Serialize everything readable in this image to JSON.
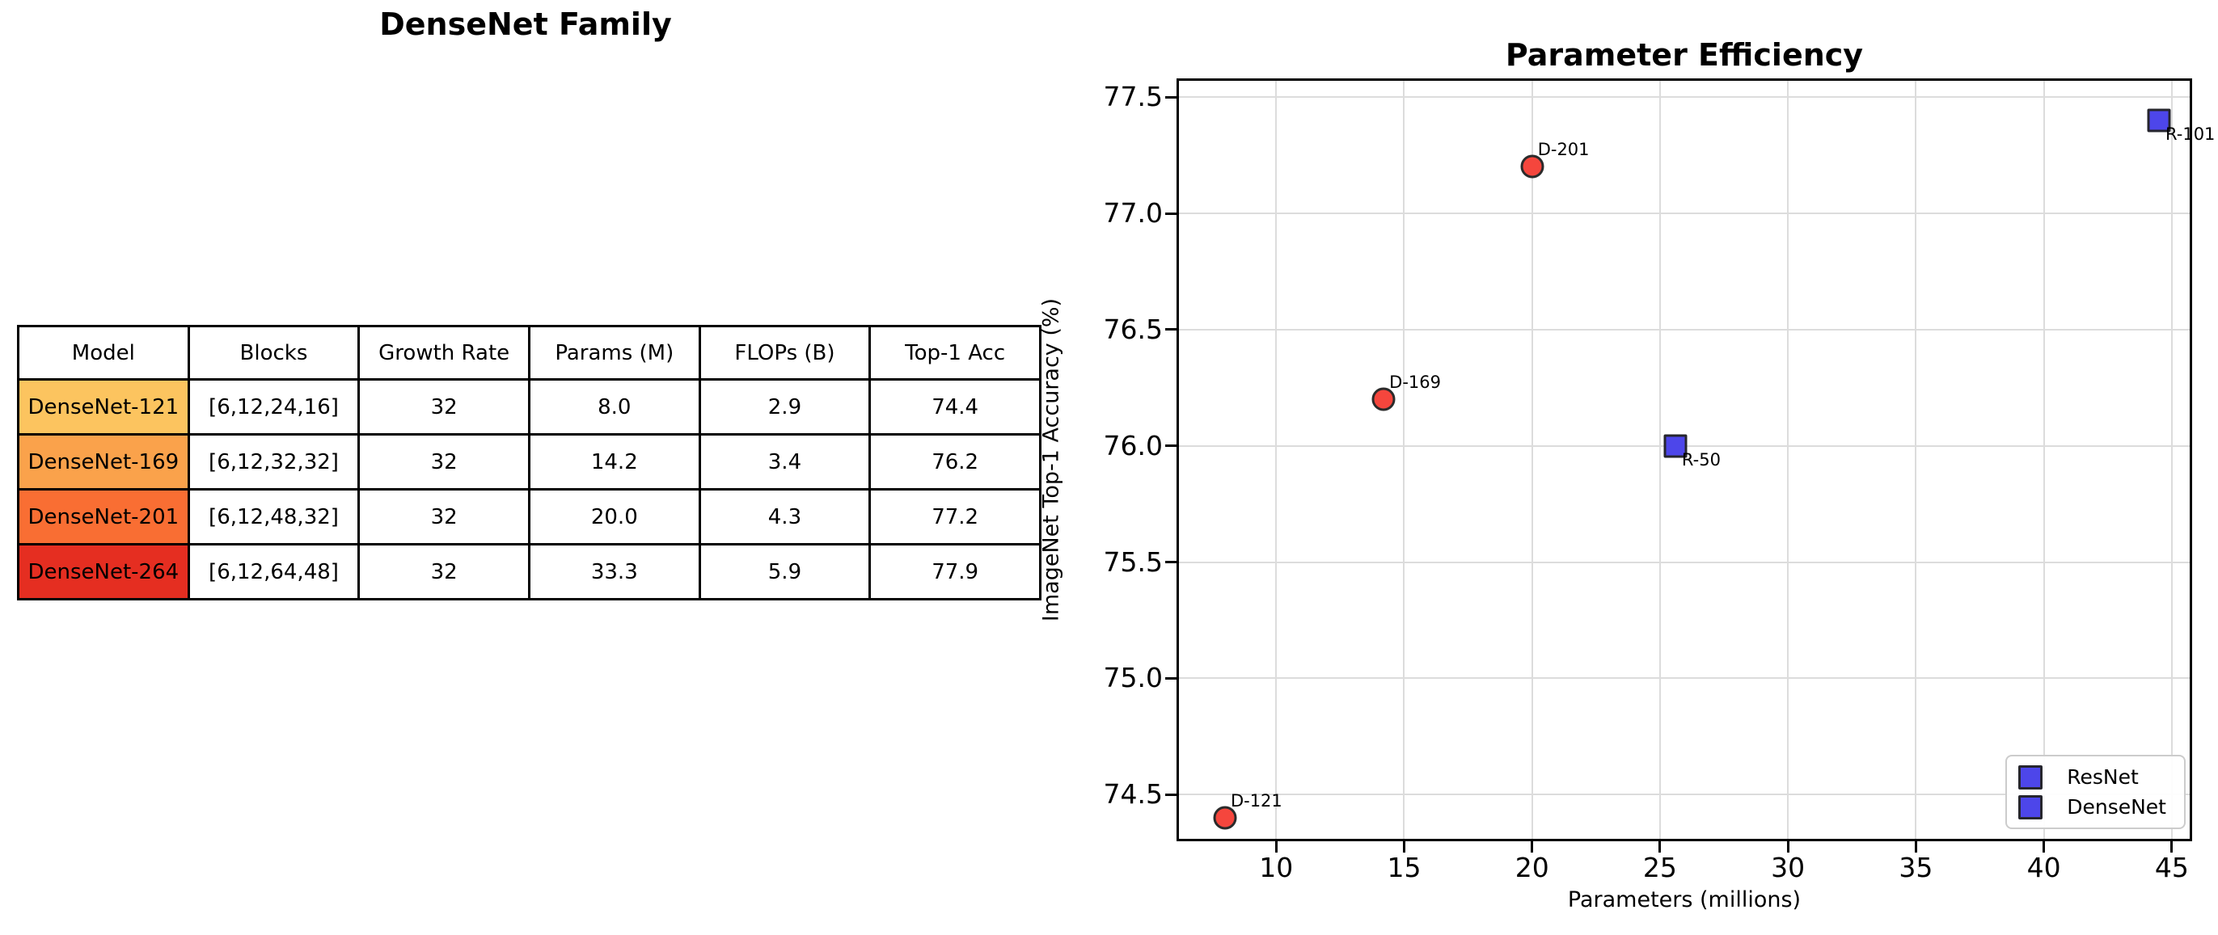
{
  "page": {
    "background": "#ffffff"
  },
  "left_panel": {
    "title": "DenseNet Family",
    "table": {
      "headers": [
        "Model",
        "Blocks",
        "Growth Rate",
        "Params (M)",
        "FLOPs (B)",
        "Top-1 Acc"
      ],
      "rows": [
        {
          "model": "DenseNet-121",
          "model_bg": "#FCC45F",
          "blocks": "[6,12,24,16]",
          "growth_rate": "32",
          "params_m": "8.0",
          "flops_b": "2.9",
          "top1_acc": "74.4"
        },
        {
          "model": "DenseNet-169",
          "model_bg": "#FAA24B",
          "blocks": "[6,12,32,32]",
          "growth_rate": "32",
          "params_m": "14.2",
          "flops_b": "3.4",
          "top1_acc": "76.2"
        },
        {
          "model": "DenseNet-201",
          "model_bg": "#F96E33",
          "blocks": "[6,12,48,32]",
          "growth_rate": "32",
          "params_m": "20.0",
          "flops_b": "4.3",
          "top1_acc": "77.2"
        },
        {
          "model": "DenseNet-264",
          "model_bg": "#E52E21",
          "blocks": "[6,12,64,48]",
          "growth_rate": "32",
          "params_m": "33.3",
          "flops_b": "5.9",
          "top1_acc": "77.9"
        }
      ]
    }
  },
  "chart_data": {
    "type": "scatter",
    "title": "Parameter Efficiency",
    "xlabel": "Parameters (millions)",
    "ylabel": "ImageNet Top-1 Accuracy (%)",
    "xlim": [
      6.2,
      45.7
    ],
    "ylim": [
      74.31,
      77.57
    ],
    "xtick_values": [
      10,
      15,
      20,
      25,
      30,
      35,
      40,
      45
    ],
    "xtick_labels": [
      "10",
      "15",
      "20",
      "25",
      "30",
      "35",
      "40",
      "45"
    ],
    "ytick_values": [
      74.5,
      75.0,
      75.5,
      76.0,
      76.5,
      77.0,
      77.5
    ],
    "ytick_labels": [
      "74.5",
      "75.0",
      "75.5",
      "76.0",
      "76.5",
      "77.0",
      "77.5"
    ],
    "grid": true,
    "grid_color": "#dcdcdc",
    "series": [
      {
        "name": "DenseNet",
        "marker": "circle",
        "fill": "#F5463D",
        "edge": "#2b2b2b",
        "label_offset": [
          7,
          -33
        ],
        "points": [
          {
            "x": 8.0,
            "y": 74.4,
            "label": "D-121"
          },
          {
            "x": 14.2,
            "y": 76.2,
            "label": "D-169"
          },
          {
            "x": 20.0,
            "y": 77.2,
            "label": "D-201"
          }
        ]
      },
      {
        "name": "ResNet",
        "marker": "square",
        "fill": "#4D46EA",
        "edge": "#26262e",
        "label_offset": [
          8,
          5
        ],
        "points": [
          {
            "x": 25.6,
            "y": 76.0,
            "label": "R-50"
          },
          {
            "x": 44.5,
            "y": 77.4,
            "label": "R-101"
          }
        ]
      }
    ],
    "legend": {
      "position": "lower right",
      "entries": [
        {
          "label": "ResNet",
          "marker": "square",
          "color": "#4D46EA"
        },
        {
          "label": "DenseNet",
          "marker": "square",
          "color": "#4D46EA"
        }
      ]
    }
  }
}
